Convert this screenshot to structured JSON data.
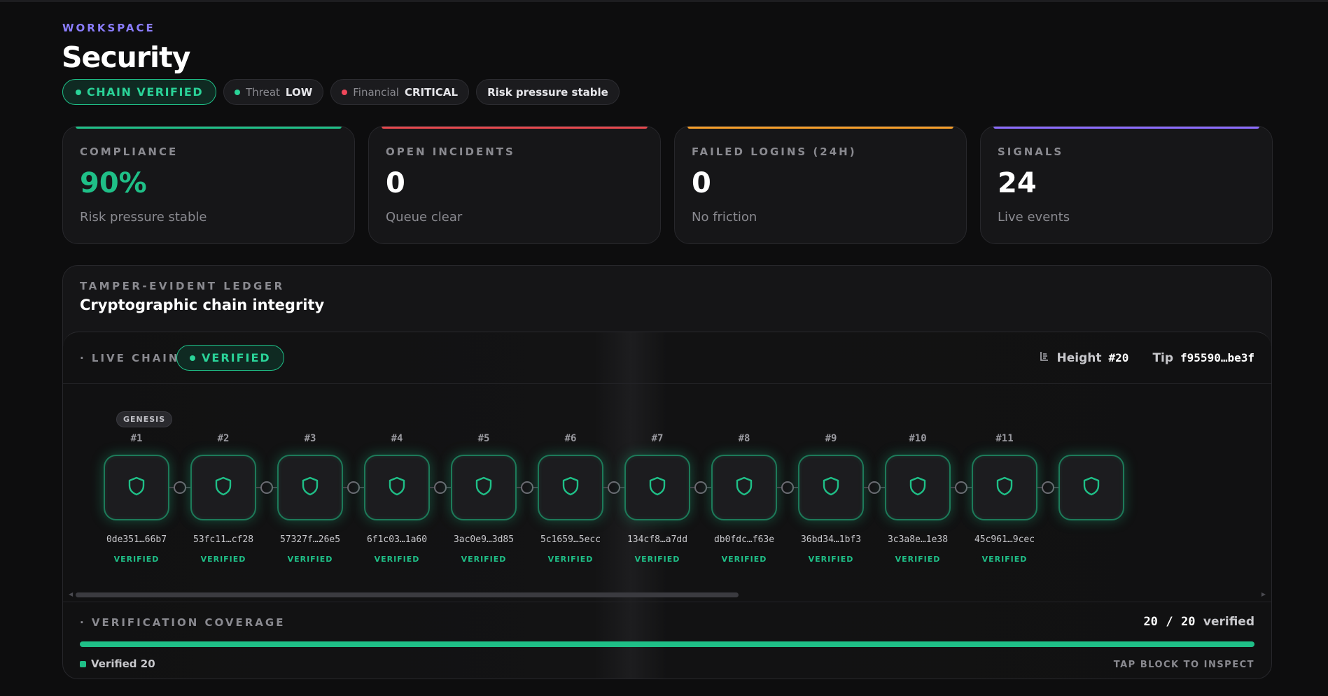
{
  "header": {
    "eyebrow": "WORKSPACE",
    "title": "Security",
    "pills": [
      {
        "type": "status",
        "label": "CHAIN VERIFIED",
        "dot_color": "#2ad398"
      },
      {
        "type": "kv",
        "key": "Threat",
        "value": "LOW",
        "dot_color": "#2ad398"
      },
      {
        "type": "kv",
        "key": "Financial",
        "value": "CRITICAL",
        "dot_color": "#f0475a"
      },
      {
        "type": "plain",
        "label": "Risk pressure stable"
      }
    ]
  },
  "cards": [
    {
      "label": "COMPLIANCE",
      "value": "90%",
      "sub": "Risk pressure stable",
      "accent": "#1fbf87",
      "value_color": "#1fbf87"
    },
    {
      "label": "OPEN INCIDENTS",
      "value": "0",
      "sub": "Queue clear",
      "accent": "#e5484d",
      "value_color": "#ffffff"
    },
    {
      "label": "FAILED LOGINS (24H)",
      "value": "0",
      "sub": "No friction",
      "accent": "#f59e2a",
      "value_color": "#ffffff"
    },
    {
      "label": "SIGNALS",
      "value": "24",
      "sub": "Live events",
      "accent": "#8b6cff",
      "value_color": "#ffffff"
    }
  ],
  "ledger": {
    "eyebrow": "TAMPER-EVIDENT LEDGER",
    "title": "Cryptographic chain integrity",
    "live_label": "LIVE CHAIN",
    "live_badge": "VERIFIED",
    "height_label": "Height",
    "height_value": "#20",
    "tip_label": "Tip",
    "tip_value": "f95590…be3f",
    "genesis_label": "GENESIS",
    "blocks": [
      {
        "num": "#1",
        "hash": "0de351…66b7",
        "status": "VERIFIED"
      },
      {
        "num": "#2",
        "hash": "53fc11…cf28",
        "status": "VERIFIED"
      },
      {
        "num": "#3",
        "hash": "57327f…26e5",
        "status": "VERIFIED"
      },
      {
        "num": "#4",
        "hash": "6f1c03…1a60",
        "status": "VERIFIED"
      },
      {
        "num": "#5",
        "hash": "3ac0e9…3d85",
        "status": "VERIFIED"
      },
      {
        "num": "#6",
        "hash": "5c1659…5ecc",
        "status": "VERIFIED"
      },
      {
        "num": "#7",
        "hash": "134cf8…a7dd",
        "status": "VERIFIED"
      },
      {
        "num": "#8",
        "hash": "db0fdc…f63e",
        "status": "VERIFIED"
      },
      {
        "num": "#9",
        "hash": "36bd34…1bf3",
        "status": "VERIFIED"
      },
      {
        "num": "#10",
        "hash": "3c3a8e…1e38",
        "status": "VERIFIED"
      },
      {
        "num": "#11",
        "hash": "45c961…9cec",
        "status": "VERIFIED"
      },
      {
        "num": "",
        "hash": "",
        "status": ""
      }
    ],
    "coverage": {
      "label": "VERIFICATION COVERAGE",
      "verified": "20",
      "sep": "/",
      "total": "20",
      "suffix": "verified",
      "fraction": 1.0,
      "legend": "Verified 20",
      "hint": "TAP BLOCK TO INSPECT"
    }
  },
  "colors": {
    "accent_green": "#1fbf87",
    "accent_purple": "#8b7dff"
  }
}
